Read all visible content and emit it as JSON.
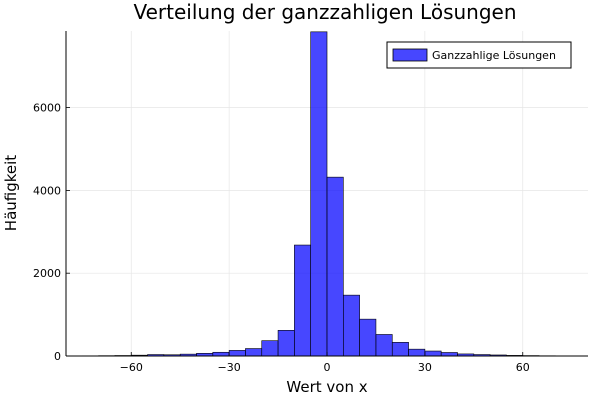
{
  "chart_data": {
    "type": "bar",
    "title": "Verteilung der ganzzahligen Lösungen",
    "xlabel": "Wert von x",
    "ylabel": "Häufigkeit",
    "xlim": [
      -80,
      80
    ],
    "ylim": [
      0,
      7850
    ],
    "bin_width": 5,
    "xticks": [
      -60,
      -30,
      0,
      30,
      60
    ],
    "xtick_labels": [
      "−60",
      "−30",
      "0",
      "30",
      "60"
    ],
    "yticks": [
      0,
      2000,
      4000,
      6000
    ],
    "ytick_labels": [
      "0",
      "2000",
      "4000",
      "6000"
    ],
    "grid": true,
    "legend_position": "top-right",
    "series": [
      {
        "name": "Ganzzahlige Lösungen",
        "color": "#0000ff",
        "bins": [
          {
            "x0": -75,
            "x1": -70,
            "value": 5
          },
          {
            "x0": -70,
            "x1": -65,
            "value": 8
          },
          {
            "x0": -65,
            "x1": -60,
            "value": 12
          },
          {
            "x0": -60,
            "x1": -55,
            "value": 20
          },
          {
            "x0": -55,
            "x1": -50,
            "value": 35
          },
          {
            "x0": -50,
            "x1": -45,
            "value": 30
          },
          {
            "x0": -45,
            "x1": -40,
            "value": 45
          },
          {
            "x0": -40,
            "x1": -35,
            "value": 65
          },
          {
            "x0": -35,
            "x1": -30,
            "value": 90
          },
          {
            "x0": -30,
            "x1": -25,
            "value": 135
          },
          {
            "x0": -25,
            "x1": -20,
            "value": 180
          },
          {
            "x0": -20,
            "x1": -15,
            "value": 370
          },
          {
            "x0": -15,
            "x1": -10,
            "value": 620
          },
          {
            "x0": -10,
            "x1": -5,
            "value": 2680
          },
          {
            "x0": -5,
            "x1": 0,
            "value": 7830
          },
          {
            "x0": 0,
            "x1": 5,
            "value": 4320
          },
          {
            "x0": 5,
            "x1": 10,
            "value": 1470
          },
          {
            "x0": 10,
            "x1": 15,
            "value": 890
          },
          {
            "x0": 15,
            "x1": 20,
            "value": 520
          },
          {
            "x0": 20,
            "x1": 25,
            "value": 330
          },
          {
            "x0": 25,
            "x1": 30,
            "value": 165
          },
          {
            "x0": 30,
            "x1": 35,
            "value": 120
          },
          {
            "x0": 35,
            "x1": 40,
            "value": 85
          },
          {
            "x0": 40,
            "x1": 45,
            "value": 50
          },
          {
            "x0": 45,
            "x1": 50,
            "value": 35
          },
          {
            "x0": 50,
            "x1": 55,
            "value": 25
          },
          {
            "x0": 55,
            "x1": 60,
            "value": 15
          },
          {
            "x0": 60,
            "x1": 65,
            "value": 10
          },
          {
            "x0": 65,
            "x1": 70,
            "value": 6
          },
          {
            "x0": 70,
            "x1": 75,
            "value": 4
          }
        ]
      }
    ]
  }
}
